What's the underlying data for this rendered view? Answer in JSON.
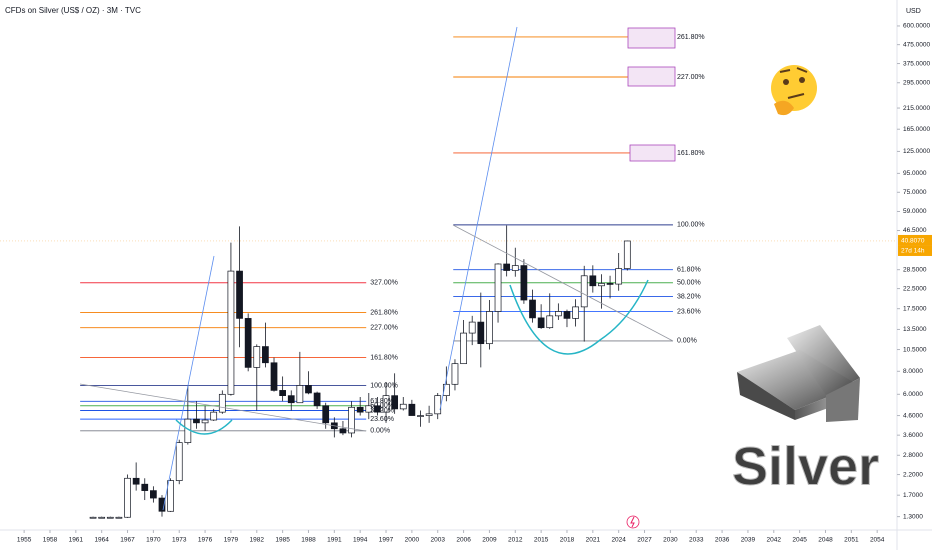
{
  "chart_data": {
    "type": "candlestick",
    "title": "CFDs on Silver (US$ / OZ) · 3M · TVC",
    "currency": "USD",
    "headline": "Silver",
    "log_scale": true,
    "x": [
      1963,
      1964,
      1965,
      1966,
      1967,
      1968,
      1969,
      1970,
      1971,
      1972,
      1973,
      1974,
      1975,
      1976,
      1977,
      1978,
      1979,
      1980,
      1981,
      1982,
      1983,
      1984,
      1985,
      1986,
      1987,
      1988,
      1989,
      1990,
      1991,
      1992,
      1993,
      1994,
      1995,
      1996,
      1997,
      1998,
      1999,
      2000,
      2001,
      2002,
      2003,
      2004,
      2005,
      2006,
      2007,
      2008,
      2009,
      2010,
      2011,
      2012,
      2013,
      2014,
      2015,
      2016,
      2017,
      2018,
      2019,
      2020,
      2021,
      2022,
      2023,
      2024,
      2025
    ],
    "open": [
      1.29,
      1.29,
      1.29,
      1.29,
      1.29,
      2.1,
      1.95,
      1.8,
      1.64,
      1.39,
      2.04,
      3.28,
      4.4,
      4.2,
      4.35,
      4.8,
      6.0,
      28.0,
      15.5,
      8.4,
      10.9,
      8.9,
      6.3,
      5.9,
      5.4,
      6.7,
      6.1,
      5.2,
      4.2,
      3.9,
      3.7,
      5.1,
      4.8,
      5.2,
      4.8,
      5.9,
      5.0,
      5.3,
      4.6,
      4.6,
      4.7,
      5.9,
      6.8,
      8.8,
      12.9,
      14.8,
      11.3,
      16.9,
      30.6,
      28.2,
      30.0,
      19.5,
      15.6,
      13.8,
      16.0,
      16.9,
      15.5,
      17.9,
      26.4,
      23.3,
      24.0,
      23.8,
      28.9
    ],
    "high": [
      1.3,
      1.3,
      1.3,
      1.3,
      2.2,
      2.56,
      2.1,
      1.9,
      1.7,
      2.1,
      3.4,
      6.7,
      5.5,
      5.2,
      5.0,
      6.3,
      40,
      49,
      16.5,
      11.2,
      14.7,
      9.5,
      7.5,
      6.3,
      10.2,
      8.0,
      6.2,
      5.4,
      4.5,
      4.3,
      5.5,
      5.8,
      6.1,
      5.8,
      7.0,
      7.8,
      5.8,
      5.6,
      4.9,
      5.2,
      6.1,
      8.5,
      9.3,
      15.2,
      16.0,
      21.4,
      19.5,
      30.9,
      49.5,
      37.5,
      32.5,
      22.2,
      18.5,
      21.2,
      18.7,
      17.3,
      19.7,
      29.9,
      30.1,
      26.9,
      26.4,
      35.1,
      41.0
    ],
    "low": [
      1.28,
      1.28,
      1.28,
      1.28,
      1.28,
      1.8,
      1.6,
      1.55,
      1.3,
      1.38,
      1.95,
      3.2,
      3.9,
      3.8,
      4.3,
      4.7,
      5.9,
      10.8,
      8.0,
      4.9,
      8.4,
      6.2,
      5.5,
      4.9,
      5.4,
      6.0,
      5.0,
      3.9,
      3.5,
      3.6,
      3.5,
      4.6,
      4.4,
      4.6,
      4.2,
      4.7,
      4.9,
      4.6,
      4.0,
      4.2,
      4.4,
      5.5,
      6.3,
      8.8,
      11.1,
      8.4,
      10.5,
      14.7,
      26.2,
      26.1,
      18.6,
      14.7,
      13.6,
      13.6,
      15.2,
      13.9,
      14.0,
      11.6,
      21.4,
      17.5,
      19.9,
      21.9,
      28.2
    ],
    "close": [
      1.29,
      1.29,
      1.29,
      1.29,
      2.1,
      1.95,
      1.8,
      1.64,
      1.39,
      2.04,
      3.28,
      4.4,
      4.2,
      4.35,
      4.8,
      6.0,
      28.0,
      15.5,
      8.4,
      10.9,
      8.9,
      6.3,
      5.9,
      5.4,
      6.7,
      6.1,
      5.2,
      4.2,
      3.9,
      3.7,
      5.1,
      4.8,
      5.2,
      4.8,
      5.9,
      5.0,
      5.3,
      4.6,
      4.6,
      4.7,
      5.9,
      6.8,
      8.8,
      12.9,
      14.8,
      11.3,
      16.9,
      30.6,
      28.2,
      30.0,
      19.5,
      15.6,
      13.8,
      16.0,
      16.9,
      15.5,
      17.9,
      26.4,
      23.3,
      24.0,
      23.8,
      28.9,
      40.8
    ],
    "up_color": "#ffffff",
    "down_color": "#131722",
    "xlim": [
      1952.2,
      2056.3
    ],
    "xticks": [
      1955,
      1958,
      1961,
      1964,
      1967,
      1970,
      1973,
      1976,
      1979,
      1982,
      1985,
      1988,
      1991,
      1994,
      1997,
      2000,
      2003,
      2006,
      2009,
      2012,
      2015,
      2018,
      2021,
      2024,
      2027,
      2030,
      2033,
      2036,
      2039,
      2042,
      2045,
      2048,
      2051,
      2054
    ],
    "ylim": [
      1.1,
      830
    ],
    "yticks": [
      {
        "value": 600,
        "label": "600.0000"
      },
      {
        "value": 475,
        "label": "475.0000"
      },
      {
        "value": 375,
        "label": "375.0000"
      },
      {
        "value": 295,
        "label": "295.0000"
      },
      {
        "value": 215,
        "label": "215.0000"
      },
      {
        "value": 165,
        "label": "165.0000"
      },
      {
        "value": 125,
        "label": "125.0000"
      },
      {
        "value": 95,
        "label": "95.0000"
      },
      {
        "value": 75,
        "label": "75.0000"
      },
      {
        "value": 59,
        "label": "59.0000"
      },
      {
        "value": 46.5,
        "label": "46.5000"
      },
      {
        "value": 28.5,
        "label": "28.5000"
      },
      {
        "value": 22.5,
        "label": "22.5000"
      },
      {
        "value": 17.5,
        "label": "17.5000"
      },
      {
        "value": 13.5,
        "label": "13.5000"
      },
      {
        "value": 10.5,
        "label": "10.5000"
      },
      {
        "value": 8,
        "label": "8.0000"
      },
      {
        "value": 6,
        "label": "6.0000"
      },
      {
        "value": 4.6,
        "label": "4.6000"
      },
      {
        "value": 3.6,
        "label": "3.6000"
      },
      {
        "value": 2.8,
        "label": "2.8000"
      },
      {
        "value": 2.2,
        "label": "2.2000"
      },
      {
        "value": 1.7,
        "label": "1.7000"
      },
      {
        "value": 1.3,
        "label": "1.3000"
      }
    ],
    "last_price": {
      "value": 40.807,
      "label": "40.8070"
    },
    "countdown": "27d 14h",
    "fib_groups": [
      {
        "x_range": [
          1961.5,
          1994.7
        ],
        "levels": [
          {
            "label": "327.00%",
            "value": 24.2,
            "color": "#f23645"
          },
          {
            "label": "261.80%",
            "value": 16.7,
            "color": "#f57c00"
          },
          {
            "label": "227.00%",
            "value": 13.8,
            "color": "#f57c00"
          },
          {
            "label": "161.80%",
            "value": 9.5,
            "color": "#f4511e"
          },
          {
            "label": "100.00%",
            "value": 6.7,
            "color": "#2f3f8f"
          },
          {
            "label": "61.80%",
            "value": 5.5,
            "color": "#1e53e5"
          },
          {
            "label": "50.00%",
            "value": 5.2,
            "color": "#4caf50"
          },
          {
            "label": "38.20%",
            "value": 4.9,
            "color": "#1e53e5"
          },
          {
            "label": "23.60%",
            "value": 4.4,
            "color": "#2962ff"
          },
          {
            "label": "0.00%",
            "value": 3.8,
            "color": "#787b86"
          }
        ]
      },
      {
        "x_range": [
          2004.8,
          2030.3
        ],
        "levels": [
          {
            "label": "261.80%",
            "value": 523,
            "color": "#f57c00"
          },
          {
            "label": "227.00%",
            "value": 317,
            "color": "#f57c00"
          },
          {
            "label": "161.80%",
            "value": 122.7,
            "color": "#f4511e"
          },
          {
            "label": "100.00%",
            "value": 49.9,
            "color": "#2f3f8f"
          },
          {
            "label": "61.80%",
            "value": 28.5,
            "color": "#1e53e5"
          },
          {
            "label": "50.00%",
            "value": 24.2,
            "color": "#4caf50"
          },
          {
            "label": "38.20%",
            "value": 20.4,
            "color": "#1e53e5"
          },
          {
            "label": "23.60%",
            "value": 16.9,
            "color": "#2962ff"
          },
          {
            "label": "0.00%",
            "value": 11.7,
            "color": "#787b86"
          }
        ]
      }
    ]
  }
}
